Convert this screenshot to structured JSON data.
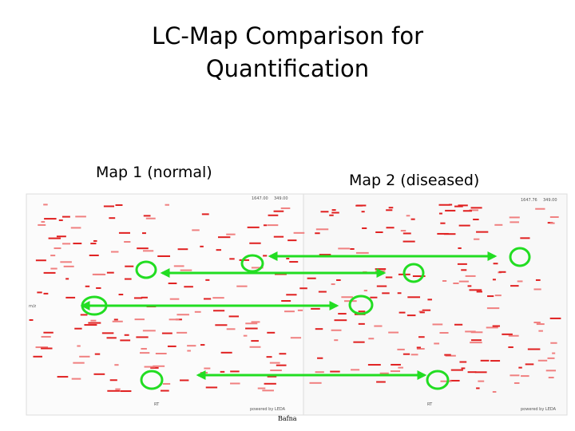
{
  "title": [
    "LC-Map Comparison for",
    "Quantification"
  ],
  "maps": [
    {
      "label": "Map 1 (normal)",
      "header": [
        "1647.00",
        "349.00"
      ],
      "y_axis_label": "m/z",
      "x_axis_label": "RT",
      "credit": "powered by LEDA"
    },
    {
      "label": "Map 2 (diseased)",
      "header": [
        "1647.76",
        "349.00"
      ],
      "x_axis_label": "RT",
      "credit": "powered by LEDA"
    }
  ],
  "footer": "Bafna"
}
